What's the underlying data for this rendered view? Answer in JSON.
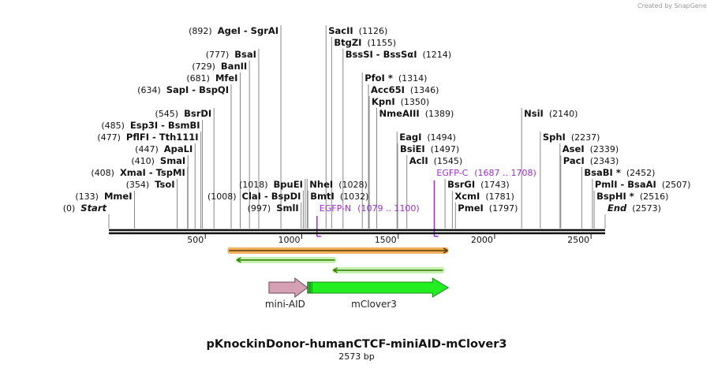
{
  "credit": "Created by SnapGene",
  "title": "pKnockinDonor-humanCTCF-miniAID-mClover3",
  "length_label": "2573 bp",
  "total_bp": 2573,
  "ticks": [
    {
      "label": "500",
      "bp": 500
    },
    {
      "label": "1000",
      "bp": 1000
    },
    {
      "label": "1500",
      "bp": 1500
    },
    {
      "label": "2000",
      "bp": 2000
    },
    {
      "label": "2500",
      "bp": 2500
    }
  ],
  "sites": [
    {
      "id": "start",
      "name": "Start",
      "pos": "(0)",
      "bp": 0,
      "row": 0,
      "side": "left",
      "italic": true
    },
    {
      "id": "mmei",
      "name": "MmeI",
      "pos": "(133)",
      "bp": 133,
      "row": 1,
      "side": "left"
    },
    {
      "id": "tsoi",
      "name": "TsoI",
      "pos": "(354)",
      "bp": 354,
      "row": 2,
      "side": "left"
    },
    {
      "id": "xmai",
      "name": "XmaI  -  TspMI",
      "pos": "(408)",
      "bp": 408,
      "row": 3,
      "side": "left"
    },
    {
      "id": "smai",
      "name": "SmaI",
      "pos": "(410)",
      "bp": 410,
      "row": 4,
      "side": "left"
    },
    {
      "id": "apali",
      "name": "ApaLI",
      "pos": "(447)",
      "bp": 447,
      "row": 5,
      "side": "left"
    },
    {
      "id": "pflfi",
      "name": "PflFI  -  Tth111I",
      "pos": "(477)",
      "bp": 477,
      "row": 6,
      "side": "left"
    },
    {
      "id": "esp3i",
      "name": "Esp3I  -  BsmBI",
      "pos": "(485)",
      "bp": 485,
      "row": 7,
      "side": "left"
    },
    {
      "id": "bsrdi",
      "name": "BsrDI",
      "pos": "(545)",
      "bp": 545,
      "row": 8,
      "side": "left"
    },
    {
      "id": "sapi",
      "name": "SapI  -  BspQI",
      "pos": "(634)",
      "bp": 634,
      "row": 10,
      "side": "left"
    },
    {
      "id": "mfei",
      "name": "MfeI",
      "pos": "(681)",
      "bp": 681,
      "row": 11,
      "side": "left"
    },
    {
      "id": "banii",
      "name": "BanII",
      "pos": "(729)",
      "bp": 729,
      "row": 12,
      "side": "left"
    },
    {
      "id": "bsai",
      "name": "BsaI",
      "pos": "(777)",
      "bp": 777,
      "row": 13,
      "side": "left"
    },
    {
      "id": "agei",
      "name": "AgeI  -  SgrAI",
      "pos": "(892)",
      "bp": 892,
      "row": 15,
      "side": "left"
    },
    {
      "id": "smli",
      "name": "SmlI",
      "pos": "(997)",
      "bp": 997,
      "row": 0,
      "side": "left"
    },
    {
      "id": "clai",
      "name": "ClaI  -  BspDI",
      "pos": "(1008)",
      "bp": 1008,
      "row": 1,
      "side": "left"
    },
    {
      "id": "bpuei",
      "name": "BpuEI",
      "pos": "(1018)",
      "bp": 1018,
      "row": 2,
      "side": "left"
    },
    {
      "id": "bmti",
      "name": "BmtI",
      "pos": "(1032)",
      "bp": 1032,
      "row": 1,
      "side": "right"
    },
    {
      "id": "nhei",
      "name": "NheI",
      "pos": "(1028)",
      "bp": 1028,
      "row": 2,
      "side": "right"
    },
    {
      "id": "sacii",
      "name": "SacII",
      "pos": "(1126)",
      "bp": 1126,
      "row": 15,
      "side": "right"
    },
    {
      "id": "btgzi",
      "name": "BtgZI",
      "pos": "(1155)",
      "bp": 1155,
      "row": 14,
      "side": "right"
    },
    {
      "id": "bsssi",
      "name": "BssSI  -  BssSαI",
      "pos": "(1214)",
      "bp": 1214,
      "row": 13,
      "side": "right"
    },
    {
      "id": "pfoi",
      "name": "PfoI *",
      "pos": "(1314)",
      "bp": 1314,
      "row": 11,
      "side": "right"
    },
    {
      "id": "acc65i",
      "name": "Acc65I",
      "pos": "(1346)",
      "bp": 1346,
      "row": 10,
      "side": "right"
    },
    {
      "id": "kpni",
      "name": "KpnI",
      "pos": "(1350)",
      "bp": 1350,
      "row": 9,
      "side": "right"
    },
    {
      "id": "nmeaiii",
      "name": "NmeAIII",
      "pos": "(1389)",
      "bp": 1389,
      "row": 8,
      "side": "right"
    },
    {
      "id": "eagi",
      "name": "EagI",
      "pos": "(1494)",
      "bp": 1494,
      "row": 6,
      "side": "right"
    },
    {
      "id": "bsiei",
      "name": "BsiEI",
      "pos": "(1497)",
      "bp": 1497,
      "row": 5,
      "side": "right"
    },
    {
      "id": "acli",
      "name": "AclI",
      "pos": "(1545)",
      "bp": 1545,
      "row": 4,
      "side": "right"
    },
    {
      "id": "bsrgi",
      "name": "BsrGI",
      "pos": "(1743)",
      "bp": 1743,
      "row": 2,
      "side": "right"
    },
    {
      "id": "xcmi",
      "name": "XcmI",
      "pos": "(1781)",
      "bp": 1781,
      "row": 1,
      "side": "right"
    },
    {
      "id": "pmei",
      "name": "PmeI",
      "pos": "(1797)",
      "bp": 1797,
      "row": 0,
      "side": "right"
    },
    {
      "id": "nsii",
      "name": "NsiI",
      "pos": "(2140)",
      "bp": 2140,
      "row": 8,
      "side": "right"
    },
    {
      "id": "sphi",
      "name": "SphI",
      "pos": "(2237)",
      "bp": 2237,
      "row": 6,
      "side": "right"
    },
    {
      "id": "asei",
      "name": "AseI",
      "pos": "(2339)",
      "bp": 2339,
      "row": 5,
      "side": "right"
    },
    {
      "id": "paci",
      "name": "PacI",
      "pos": "(2343)",
      "bp": 2343,
      "row": 4,
      "side": "right"
    },
    {
      "id": "bsabi",
      "name": "BsaBI *",
      "pos": "(2452)",
      "bp": 2452,
      "row": 3,
      "side": "right"
    },
    {
      "id": "pmli",
      "name": "PmlI  -  BsaAI",
      "pos": "(2507)",
      "bp": 2507,
      "row": 2,
      "side": "right"
    },
    {
      "id": "bsphi",
      "name": "BspHI *",
      "pos": "(2516)",
      "bp": 2516,
      "row": 1,
      "side": "right"
    },
    {
      "id": "end",
      "name": "End",
      "pos": "(2573)",
      "bp": 2573,
      "row": 0,
      "side": "right",
      "italic": true
    }
  ],
  "primers": [
    {
      "id": "egfp-n",
      "name": "EGFP-N",
      "range": "(1079 .. 1100)",
      "start_bp": 1079,
      "end_bp": 1100,
      "row": 0
    },
    {
      "id": "egfp-c",
      "name": "EGFP-C",
      "range": "(1687 .. 1708)",
      "start_bp": 1687,
      "end_bp": 1708,
      "row": 3
    }
  ],
  "feature_bars": [
    {
      "id": "orange-bar",
      "start_bp": 615,
      "end_bp": 1760,
      "direction": "forward",
      "color": "#f0b060",
      "edge_color": "#5a3a00"
    },
    {
      "id": "green-bar-1",
      "start_bp": 660,
      "end_bp": 1180,
      "direction": "reverse",
      "color": "#c8f0b0",
      "edge_color": "#2d7a00"
    },
    {
      "id": "green-bar-2",
      "start_bp": 1160,
      "end_bp": 1740,
      "direction": "reverse",
      "color": "#c8f0b0",
      "edge_color": "#2d7a00"
    }
  ],
  "features": [
    {
      "id": "mini-aid",
      "label": "mini-AID",
      "start_bp": 830,
      "end_bp": 1030,
      "color": "#d4a0b4",
      "edge": "#6e4a58"
    },
    {
      "id": "mclover3",
      "label": "mClover3",
      "start_bp": 1030,
      "end_bp": 1760,
      "color": "#22ee22",
      "edge": "#1a8a1a"
    }
  ]
}
